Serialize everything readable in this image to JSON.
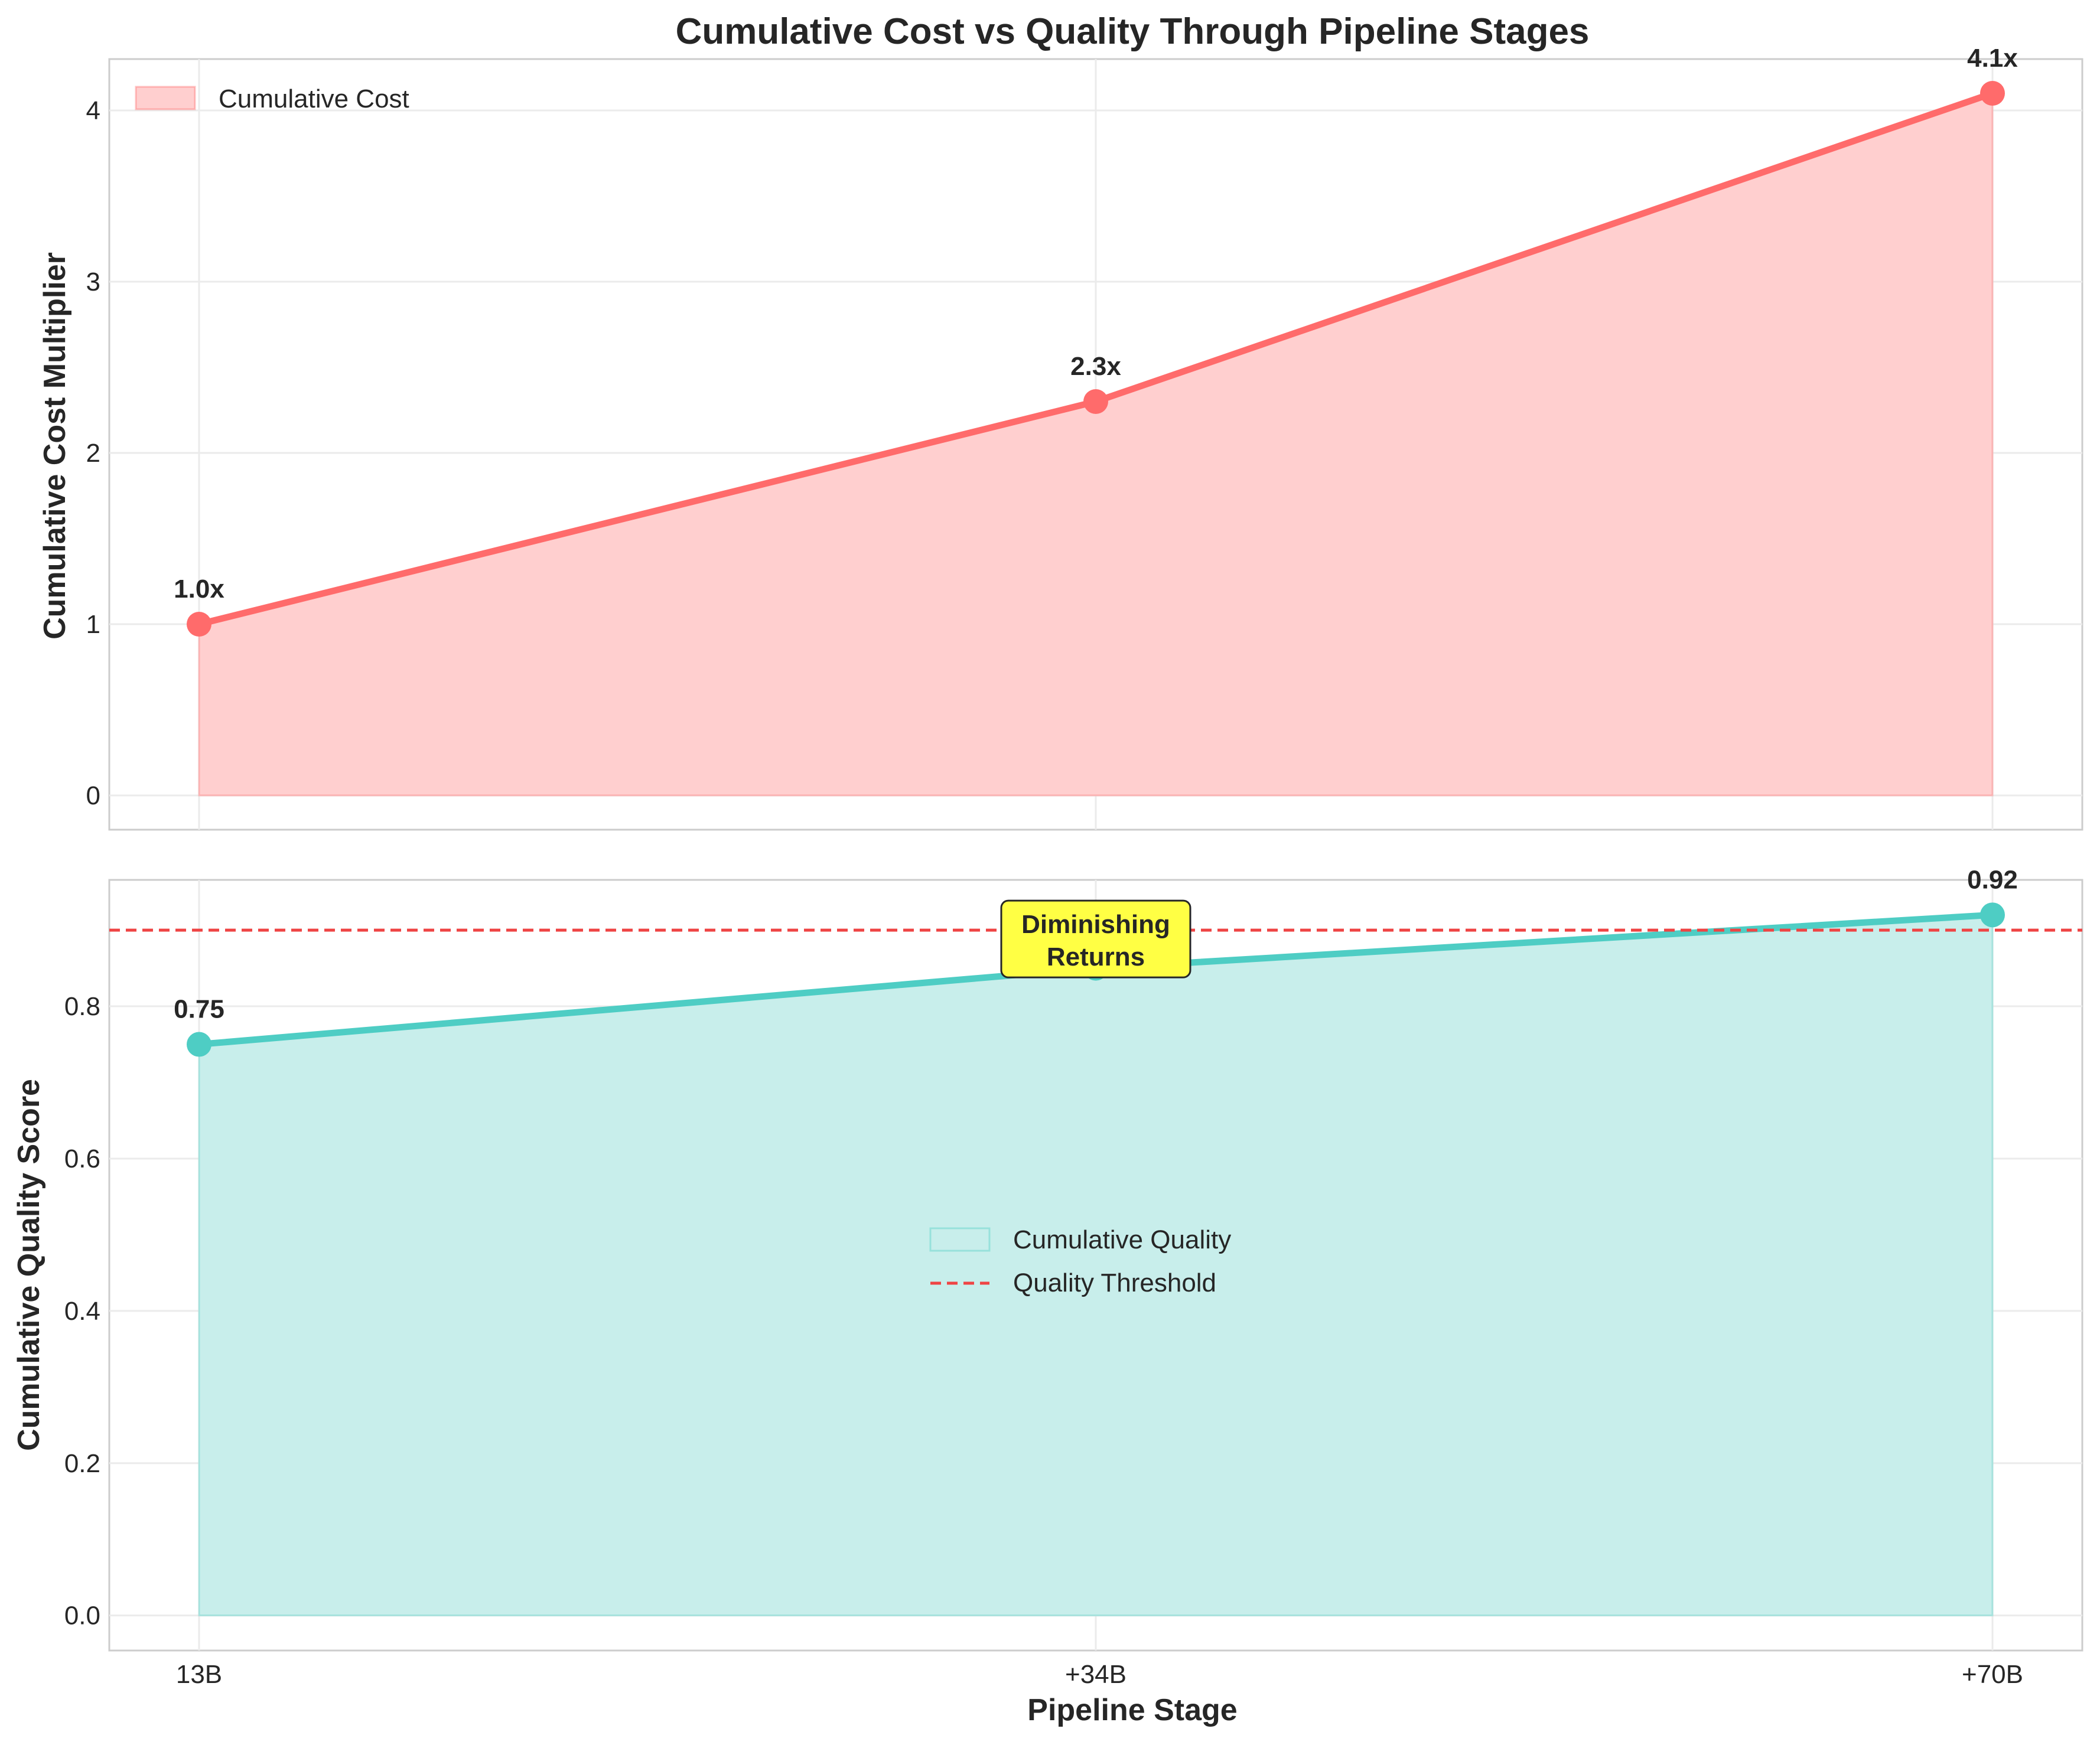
{
  "chart_data": {
    "type": "area",
    "title": "Cumulative Cost vs Quality Through Pipeline Stages",
    "categories": [
      "13B",
      "+34B",
      "+70B"
    ],
    "xlabel": "Pipeline Stage",
    "grid": true,
    "panels": [
      {
        "ylabel": "Cumulative Cost Multiplier",
        "ylim": [
          -0.2,
          4.3
        ],
        "yticks": [
          "0",
          "1",
          "2",
          "3",
          "4"
        ],
        "ytick_values": [
          0,
          1,
          2,
          3,
          4
        ],
        "series": [
          {
            "name": "Cumulative Cost",
            "values": [
              1.0,
              2.3,
              4.1
            ],
            "point_labels": [
              "1.0x",
              "2.3x",
              "4.1x"
            ],
            "line_color": "#ff6b6b",
            "fill_color": "#ffcfcf"
          }
        ],
        "legend": {
          "position": "upper-left",
          "entries": [
            "Cumulative Cost"
          ]
        }
      },
      {
        "ylabel": "Cumulative Quality Score",
        "ylim": [
          -0.046,
          0.966
        ],
        "yticks": [
          "0.0",
          "0.2",
          "0.4",
          "0.6",
          "0.8"
        ],
        "ytick_values": [
          0.0,
          0.2,
          0.4,
          0.6,
          0.8
        ],
        "series": [
          {
            "name": "Cumulative Quality",
            "values": [
              0.75,
              0.85,
              0.92
            ],
            "point_labels": [
              "0.75",
              "0.85",
              "0.92"
            ],
            "line_color": "#4ecdc4",
            "fill_color": "#c8eeeb"
          }
        ],
        "threshold": {
          "name": "Quality Threshold",
          "value": 0.9,
          "color": "#ef4444"
        },
        "annotation": {
          "lines": [
            "Diminishing",
            "Returns"
          ],
          "box_color": "#ffff44",
          "at_category": 1,
          "at_value": 0.9
        },
        "legend": {
          "position": "center",
          "entries": [
            "Cumulative Quality",
            "Quality Threshold"
          ]
        }
      }
    ]
  }
}
